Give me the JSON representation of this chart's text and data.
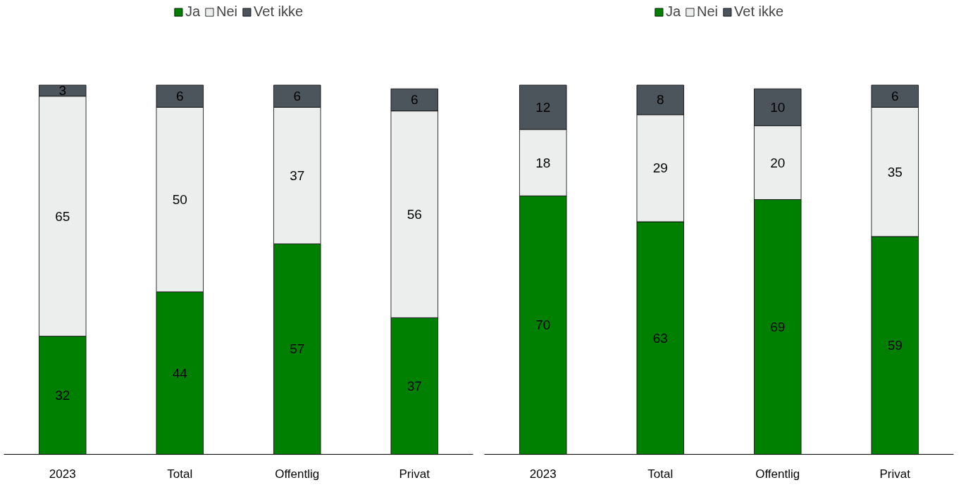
{
  "chart_data": [
    {
      "type": "bar",
      "stacked": true,
      "data_labels": true,
      "legend": "top",
      "grid": false,
      "tick_labels": "x",
      "categories": [
        "2023",
        "Total",
        "Offentlig",
        "Privat"
      ],
      "series": [
        {
          "name": "Ja",
          "color": "#008000",
          "values": [
            32,
            44,
            57,
            37
          ]
        },
        {
          "name": "Nei",
          "color": "#eceeed",
          "values": [
            65,
            50,
            37,
            56
          ]
        },
        {
          "name": "Vet ikke",
          "color": "#4d555c",
          "values": [
            3,
            6,
            6,
            6
          ]
        }
      ]
    },
    {
      "type": "bar",
      "stacked": true,
      "data_labels": true,
      "legend": "top",
      "grid": false,
      "tick_labels": "x",
      "categories": [
        "2023",
        "Total",
        "Offentlig",
        "Privat"
      ],
      "series": [
        {
          "name": "Ja",
          "color": "#008000",
          "values": [
            70,
            63,
            69,
            59
          ]
        },
        {
          "name": "Nei",
          "color": "#eceeed",
          "values": [
            18,
            29,
            20,
            35
          ]
        },
        {
          "name": "Vet ikke",
          "color": "#4d555c",
          "values": [
            12,
            8,
            10,
            6
          ]
        }
      ]
    }
  ]
}
